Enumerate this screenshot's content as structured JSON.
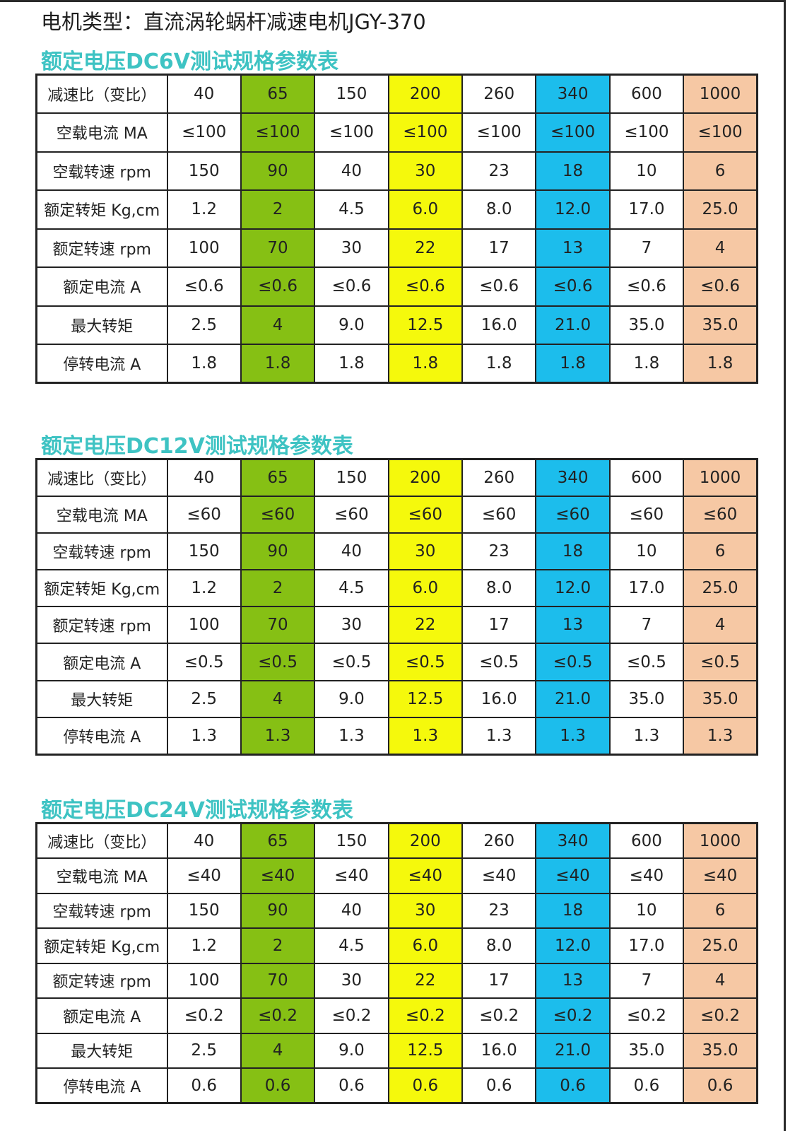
{
  "title": "电机类型：直流涡轮蜗杆减速电机JGY-370",
  "colors": {
    "highlight_green": "#86c014",
    "highlight_yellow": "#f5f90c",
    "highlight_blue": "#1cbdec",
    "highlight_orange": "#f6c8a4",
    "section_title": "#3ec3c3"
  },
  "column_highlights": [
    "",
    "green",
    "",
    "yellow",
    "",
    "blue",
    "",
    "orange"
  ],
  "sections": [
    {
      "title": "额定电压DC6V测试规格参数表",
      "rows": [
        {
          "label": "减速比（变比）",
          "values": [
            "40",
            "65",
            "150",
            "200",
            "260",
            "340",
            "600",
            "1000"
          ]
        },
        {
          "label": "空载电流 MA",
          "values": [
            "≤100",
            "≤100",
            "≤100",
            "≤100",
            "≤100",
            "≤100",
            "≤100",
            "≤100"
          ]
        },
        {
          "label": "空载转速 rpm",
          "values": [
            "150",
            "90",
            "40",
            "30",
            "23",
            "18",
            "10",
            "6"
          ]
        },
        {
          "label": "额定转矩 Kg,cm",
          "values": [
            "1.2",
            "2",
            "4.5",
            "6.0",
            "8.0",
            "12.0",
            "17.0",
            "25.0"
          ]
        },
        {
          "label": "额定转速 rpm",
          "values": [
            "100",
            "70",
            "30",
            "22",
            "17",
            "13",
            "7",
            "4"
          ]
        },
        {
          "label": "额定电流 A",
          "values": [
            "≤0.6",
            "≤0.6",
            "≤0.6",
            "≤0.6",
            "≤0.6",
            "≤0.6",
            "≤0.6",
            "≤0.6"
          ]
        },
        {
          "label": "最大转矩",
          "values": [
            "2.5",
            "4",
            "9.0",
            "12.5",
            "16.0",
            "21.0",
            "35.0",
            "35.0"
          ]
        },
        {
          "label": "停转电流 A",
          "values": [
            "1.8",
            "1.8",
            "1.8",
            "1.8",
            "1.8",
            "1.8",
            "1.8",
            "1.8"
          ]
        }
      ]
    },
    {
      "title": "额定电压DC12V测试规格参数表",
      "rows": [
        {
          "label": "减速比（变比）",
          "values": [
            "40",
            "65",
            "150",
            "200",
            "260",
            "340",
            "600",
            "1000"
          ]
        },
        {
          "label": "空载电流 MA",
          "values": [
            "≤60",
            "≤60",
            "≤60",
            "≤60",
            "≤60",
            "≤60",
            "≤60",
            "≤60"
          ]
        },
        {
          "label": "空载转速 rpm",
          "values": [
            "150",
            "90",
            "40",
            "30",
            "23",
            "18",
            "10",
            "6"
          ]
        },
        {
          "label": "额定转矩 Kg,cm",
          "values": [
            "1.2",
            "2",
            "4.5",
            "6.0",
            "8.0",
            "12.0",
            "17.0",
            "25.0"
          ]
        },
        {
          "label": "额定转速 rpm",
          "values": [
            "100",
            "70",
            "30",
            "22",
            "17",
            "13",
            "7",
            "4"
          ]
        },
        {
          "label": "额定电流 A",
          "values": [
            "≤0.5",
            "≤0.5",
            "≤0.5",
            "≤0.5",
            "≤0.5",
            "≤0.5",
            "≤0.5",
            "≤0.5"
          ]
        },
        {
          "label": "最大转矩",
          "values": [
            "2.5",
            "4",
            "9.0",
            "12.5",
            "16.0",
            "21.0",
            "35.0",
            "35.0"
          ]
        },
        {
          "label": "停转电流 A",
          "values": [
            "1.3",
            "1.3",
            "1.3",
            "1.3",
            "1.3",
            "1.3",
            "1.3",
            "1.3"
          ]
        }
      ]
    },
    {
      "title": "额定电压DC24V测试规格参数表",
      "rows": [
        {
          "label": "减速比（变比）",
          "values": [
            "40",
            "65",
            "150",
            "200",
            "260",
            "340",
            "600",
            "1000"
          ]
        },
        {
          "label": "空载电流 MA",
          "values": [
            "≤40",
            "≤40",
            "≤40",
            "≤40",
            "≤40",
            "≤40",
            "≤40",
            "≤40"
          ]
        },
        {
          "label": "空载转速 rpm",
          "values": [
            "150",
            "90",
            "40",
            "30",
            "23",
            "18",
            "10",
            "6"
          ]
        },
        {
          "label": "额定转矩 Kg,cm",
          "values": [
            "1.2",
            "2",
            "4.5",
            "6.0",
            "8.0",
            "12.0",
            "17.0",
            "25.0"
          ]
        },
        {
          "label": "额定转速 rpm",
          "values": [
            "100",
            "70",
            "30",
            "22",
            "17",
            "13",
            "7",
            "4"
          ]
        },
        {
          "label": "额定电流 A",
          "values": [
            "≤0.2",
            "≤0.2",
            "≤0.2",
            "≤0.2",
            "≤0.2",
            "≤0.2",
            "≤0.2",
            "≤0.2"
          ]
        },
        {
          "label": "最大转矩",
          "values": [
            "2.5",
            "4",
            "9.0",
            "12.5",
            "16.0",
            "21.0",
            "35.0",
            "35.0"
          ]
        },
        {
          "label": "停转电流 A",
          "values": [
            "0.6",
            "0.6",
            "0.6",
            "0.6",
            "0.6",
            "0.6",
            "0.6",
            "0.6"
          ]
        }
      ]
    }
  ]
}
